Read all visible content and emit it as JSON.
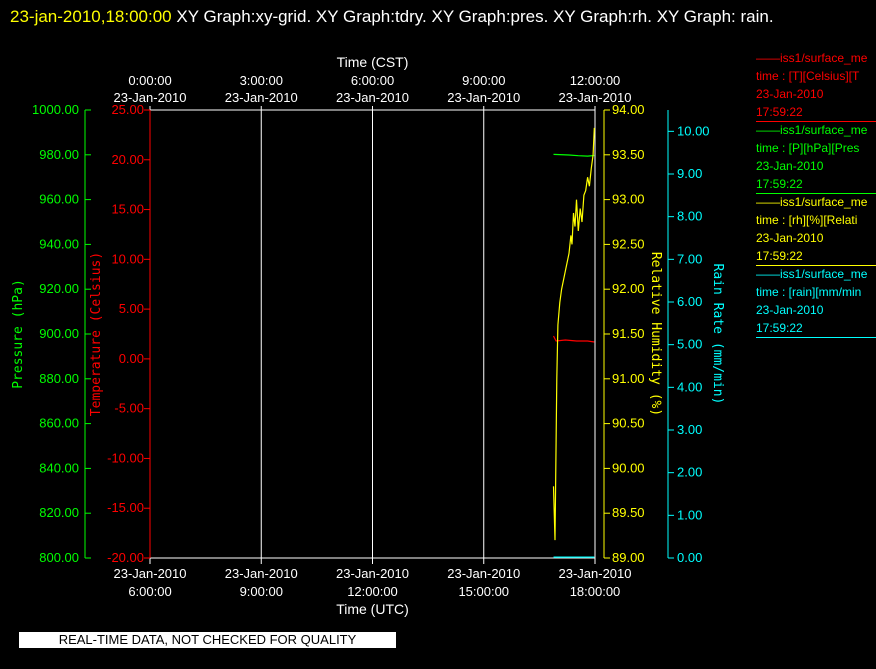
{
  "header": {
    "timestamp": "23-jan-2010,18:00:00",
    "title_rest": "XY Graph:xy-grid.  XY Graph:tdry.  XY Graph:pres.  XY Graph:rh.  XY Graph: rain."
  },
  "banner": "REAL-TIME DATA, NOT CHECKED FOR QUALITY",
  "legend": [
    {
      "name": "iss1/surface_me",
      "line2": "time : [T][Celsius][T",
      "date": "23-Jan-2010",
      "time": "17:59:22",
      "color": "#ff0000"
    },
    {
      "name": "iss1/surface_me",
      "line2": "time : [P][hPa][Pres",
      "date": "23-Jan-2010",
      "time": "17:59:22",
      "color": "#00ff00"
    },
    {
      "name": "iss1/surface_me",
      "line2": "time : [rh][%][Relati",
      "date": "23-Jan-2010",
      "time": "17:59:22",
      "color": "#ffff00"
    },
    {
      "name": "iss1/surface_me",
      "line2": "time : [rain][mm/min",
      "date": "23-Jan-2010",
      "time": "17:59:22",
      "color": "#00ffff"
    }
  ],
  "chart_data": {
    "type": "line",
    "top_axis": {
      "label": "Time (CST)",
      "ticks": [
        {
          "l1": "0:00:00",
          "l2": "23-Jan-2010"
        },
        {
          "l1": "3:00:00",
          "l2": "23-Jan-2010"
        },
        {
          "l1": "6:00:00",
          "l2": "23-Jan-2010"
        },
        {
          "l1": "9:00:00",
          "l2": "23-Jan-2010"
        },
        {
          "l1": "12:00:00",
          "l2": "23-Jan-2010"
        }
      ]
    },
    "bottom_axis": {
      "label": "Time (UTC)",
      "ticks": [
        {
          "l1": "23-Jan-2010",
          "l2": "6:00:00"
        },
        {
          "l1": "23-Jan-2010",
          "l2": "9:00:00"
        },
        {
          "l1": "23-Jan-2010",
          "l2": "12:00:00"
        },
        {
          "l1": "23-Jan-2010",
          "l2": "15:00:00"
        },
        {
          "l1": "23-Jan-2010",
          "l2": "18:00:00"
        }
      ]
    },
    "x_unit": "hours UTC",
    "xlim": [
      6,
      18
    ],
    "y_axes": [
      {
        "key": "pres",
        "label": "Pressure (hPa)",
        "color": "#00ff00",
        "ylim": [
          800,
          1000
        ],
        "ticks": [
          "1000.00",
          "980.00",
          "960.00",
          "940.00",
          "920.00",
          "900.00",
          "880.00",
          "860.00",
          "840.00",
          "820.00",
          "800.00"
        ]
      },
      {
        "key": "tdry",
        "label": "Temperature (Celsius)",
        "color": "#ff0000",
        "ylim": [
          -20,
          25
        ],
        "ticks": [
          "25.00",
          "20.00",
          "15.00",
          "10.00",
          "5.00",
          "0.00",
          "-5.00",
          "-10.00",
          "-15.00",
          "-20.00"
        ]
      },
      {
        "key": "rh",
        "label": "Relative Humidity (%)",
        "color": "#ffff00",
        "ylim": [
          89,
          94
        ],
        "ticks": [
          "94.00",
          "93.50",
          "93.00",
          "92.50",
          "92.00",
          "91.50",
          "91.00",
          "90.50",
          "90.00",
          "89.50",
          "89.00"
        ]
      },
      {
        "key": "rain",
        "label": "Rain Rate (mm/min)",
        "color": "#00ffff",
        "ylim": [
          0,
          10.5
        ],
        "ticks": [
          "10.00",
          "9.00",
          "8.00",
          "7.00",
          "6.00",
          "5.00",
          "4.00",
          "3.00",
          "2.00",
          "1.00",
          "0.00"
        ]
      }
    ],
    "series": [
      {
        "key": "tdry",
        "name": "iss1/surface_me",
        "color": "#ff0000",
        "x": [
          16.88,
          16.95,
          17.2,
          17.5,
          17.8,
          17.98
        ],
        "y": [
          2.3,
          1.8,
          1.9,
          1.8,
          1.8,
          1.7
        ]
      },
      {
        "key": "pres",
        "name": "iss1/surface_me",
        "color": "#00ff00",
        "x": [
          16.88,
          17.3,
          17.55,
          17.8,
          17.98
        ],
        "y": [
          980.2,
          979.9,
          979.6,
          979.4,
          979.7
        ]
      },
      {
        "key": "rh",
        "name": "iss1/surface_me",
        "color": "#ffff00",
        "x": [
          16.88,
          16.92,
          16.95,
          16.97,
          17.0,
          17.05,
          17.1,
          17.2,
          17.3,
          17.35,
          17.38,
          17.42,
          17.46,
          17.5,
          17.55,
          17.6,
          17.65,
          17.7,
          17.75,
          17.8,
          17.85,
          17.9,
          17.95,
          17.98
        ],
        "y": [
          89.8,
          89.2,
          90.3,
          91.0,
          91.6,
          91.85,
          92.0,
          92.2,
          92.4,
          92.6,
          92.5,
          92.85,
          92.7,
          93.0,
          92.65,
          92.9,
          92.75,
          93.05,
          93.1,
          93.25,
          93.15,
          93.35,
          93.5,
          93.8
        ]
      },
      {
        "key": "rain",
        "name": "iss1/surface_me",
        "color": "#00ffff",
        "x": [
          16.88,
          17.5,
          17.98
        ],
        "y": [
          0.02,
          0.02,
          0.02
        ]
      }
    ]
  }
}
